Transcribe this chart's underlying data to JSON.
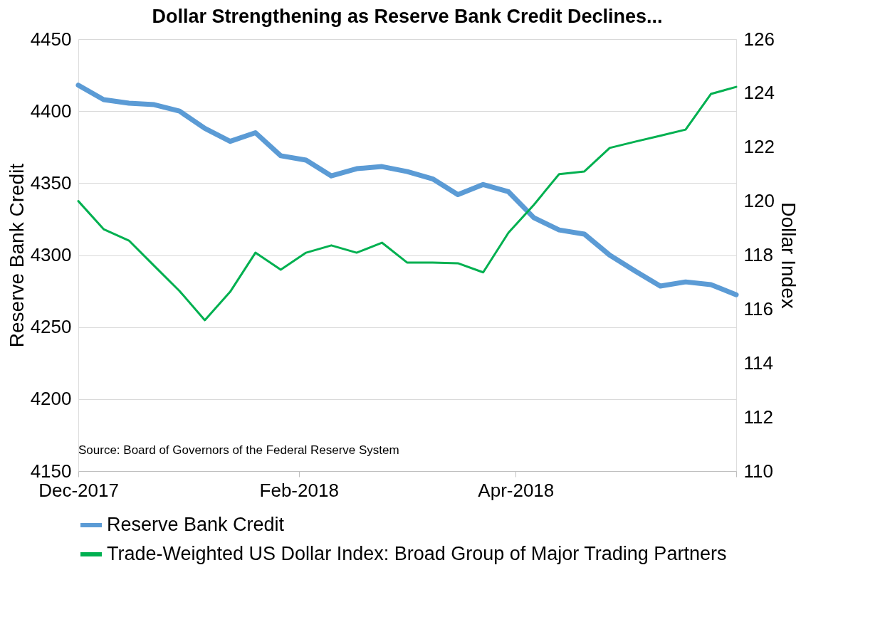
{
  "chart_data": {
    "type": "line",
    "title": "Dollar Strengthening as Reserve Bank Credit Declines...",
    "ylabel": "Reserve Bank Credit",
    "y2label": "Dollar Index",
    "x": [
      "2017-12-06",
      "2017-12-13",
      "2017-12-20",
      "2017-12-27",
      "2018-01-03",
      "2018-01-10",
      "2018-01-17",
      "2018-01-24",
      "2018-01-31",
      "2018-02-07",
      "2018-02-14",
      "2018-02-21",
      "2018-02-28",
      "2018-03-07",
      "2018-03-14",
      "2018-03-21",
      "2018-03-28",
      "2018-04-04",
      "2018-04-11",
      "2018-04-18",
      "2018-04-25",
      "2018-05-02",
      "2018-05-09",
      "2018-05-16",
      "2018-05-23",
      "2018-05-30",
      "2018-06-06"
    ],
    "series": [
      {
        "name": "Reserve Bank Credit",
        "color": "#5b9bd5",
        "values": [
          4418,
          4408,
          4405.5,
          4404.5,
          4400,
          4388,
          4379,
          4385,
          4369,
          4366,
          4355,
          4360,
          4361.5,
          4358,
          4353,
          4342,
          4349,
          4344,
          4326,
          4317.5,
          4314.6,
          4300,
          4289,
          4278.5,
          4281.4,
          4279.5,
          4272.5
        ]
      },
      {
        "name": "Trade-Weighted US Dollar Index: Broad Group of Major Trading Partners",
        "color": "#00b050",
        "axis": "y2",
        "values": [
          120.0,
          118.96,
          118.54,
          117.6,
          116.67,
          115.59,
          116.64,
          118.09,
          117.46,
          118.09,
          118.36,
          118.09,
          118.46,
          117.72,
          117.72,
          117.7,
          117.36,
          118.83,
          119.86,
          121.0,
          121.1,
          121.97,
          122.2,
          122.42,
          122.65,
          123.97,
          124.23
        ]
      }
    ],
    "xlim": [
      "2017-12-06",
      "2018-06-06"
    ],
    "xticks": [
      {
        "value": "2017-12-06",
        "label": "Dec-2017"
      },
      {
        "value": "2018-02-05",
        "label": "Feb-2018"
      },
      {
        "value": "2018-04-06",
        "label": "Apr-2018"
      },
      {
        "value": "2018-06-06",
        "label": null
      }
    ],
    "ylim": [
      4150,
      4450
    ],
    "yticks": [
      4150,
      4200,
      4250,
      4300,
      4350,
      4400,
      4450
    ],
    "y2lim": [
      110,
      126
    ],
    "y2ticks": [
      110,
      112,
      114,
      116,
      118,
      120,
      122,
      124,
      126
    ],
    "grid": "y",
    "legend": "bottom",
    "marker": "none",
    "line_style": "solid",
    "annotations": [
      "Source: Board of Governors of the Federal Reserve System"
    ]
  }
}
